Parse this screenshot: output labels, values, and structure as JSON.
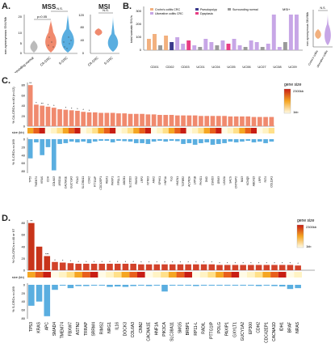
{
  "panels": {
    "A": {
      "label": "A.",
      "mss_title": "MSS",
      "msi_title": "MSI",
      "ylabel": "non-synonymous SNV/Mb",
      "pval": "p=0.05",
      "ns": "N.S.",
      "mss_groups": [
        "Surrounding normal",
        "CA-CRC",
        "S-CRC"
      ],
      "msi_groups": [
        "CA-CRC",
        "S-CRC"
      ],
      "mss_yticks": [
        "0",
        "5",
        "10",
        "20"
      ],
      "msi_yticks": [
        "0",
        "40",
        "80",
        "120"
      ]
    },
    "B": {
      "label": "B.",
      "ylabel": "total somatic SNVs",
      "msi_tag": "MSI+",
      "legend": [
        "Crohn's colitis CRC",
        "Ulcerative colitis CRC",
        "Pseudopolyp",
        "Dysplasia",
        "Surrounding normal"
      ],
      "patients": [
        "CD01",
        "CD02",
        "CD03",
        "UC01",
        "UC04",
        "UC05",
        "UC06",
        "UC07",
        "UC08",
        "UC09"
      ],
      "yticks": [
        "0",
        "100",
        "200",
        "300"
      ],
      "inset_ylabel": "non-synonymous SNV/Mb",
      "inset_ns": "N.S.",
      "inset_groups": [
        "Crohn's colitis",
        "ulcerative colitis"
      ]
    },
    "C": {
      "label": "C.",
      "top_ylabel": "% CA-CRCs n=40 (n=12)",
      "size_label": "size (kb)",
      "bottom_ylabel": "% S-CRCs n=169",
      "legend_title": "gene size",
      "legend_hi": "2300kb",
      "legend_lo": "1kb",
      "genes": [
        "TP53",
        "TMEM74",
        "KRAS",
        "CDH",
        "COL6A3",
        "ARID1A",
        "CACNA1E",
        "GUCY1A3",
        "POLG",
        "SLC38A11",
        "CDH2",
        "PTTG1IP",
        "CDC42EP1",
        "REM1",
        "PAXIP1",
        "RP11-1",
        "ABCB1",
        "SLC35D3",
        "RIMS2",
        "LRP2",
        "NTRK3",
        "ANK2",
        "SPHK1",
        "HNF1A",
        "FLG",
        "HMCN1",
        "TGFBR2",
        "ACVR2A",
        "LRP1B",
        "PKHD1",
        "DMD",
        "CSMD3",
        "GRM3",
        "USH2A",
        "SACS",
        "CNTNAP2",
        "BAI3",
        "KCNQ5",
        "ABCA13",
        "LRP5",
        "FAT4",
        "COL11A1"
      ],
      "pct_top": [
        80,
        42,
        40,
        38,
        36,
        33,
        32,
        31,
        30,
        28,
        27,
        27,
        26,
        26,
        26,
        25,
        25,
        24,
        24,
        24,
        23,
        23,
        22,
        22,
        22,
        21,
        21,
        21,
        21,
        20,
        20,
        20,
        20,
        20,
        19,
        19,
        19,
        19,
        18,
        18,
        18,
        18
      ],
      "pct_bottom": [
        48,
        8,
        40,
        20,
        78,
        12,
        10,
        6,
        8,
        6,
        10,
        6,
        4,
        4,
        8,
        4,
        5,
        6,
        10,
        10,
        12,
        6,
        4,
        6,
        4,
        5,
        12,
        10,
        14,
        10,
        8,
        14,
        12,
        10,
        6,
        8,
        6,
        4,
        8,
        6,
        10,
        6
      ],
      "stars": [
        "**",
        "*",
        "**",
        "*",
        "*",
        "",
        "*",
        "*",
        "*",
        "*",
        "*",
        "",
        "",
        "",
        "",
        "",
        "",
        "",
        "",
        "",
        "",
        "",
        "",
        "",
        "",
        "",
        "",
        "",
        "",
        "",
        "",
        "",
        "",
        "",
        "",
        "",
        "",
        "",
        "",
        "",
        "",
        ""
      ],
      "yticks_top": [
        "0",
        "20",
        "40",
        "60",
        "80"
      ],
      "yticks_bottom": [
        "0",
        "20",
        "40",
        "60",
        "80"
      ]
    },
    "D": {
      "label": "D.",
      "top_ylabel": "% CA-CRCs n=40 or 97",
      "size_label": "size (kb)",
      "bottom_ylabel": "% S-CRCs n=169",
      "legend_title": "gene size",
      "legend_hi": "2300kb",
      "legend_lo": "1kb",
      "genes": [
        "TP53",
        "KRAS",
        "APC",
        "SMAD4",
        "TMEM74",
        "FBXW7",
        "ASTN2",
        "TRRAP",
        "SRRM4",
        "RIMS2",
        "NRG1",
        "IL16",
        "DOCK3",
        "COL6A3",
        "CNN2",
        "CACNA1E",
        "HNF1A",
        "PIK3CA",
        "SLC38A11",
        "SMG5",
        "BRBP1",
        "RP11-L",
        "RADIL",
        "PTTG1IP",
        "POLG",
        "PAXIP1",
        "GXYLT1",
        "GUCY1A2",
        "EP300",
        "CDH2",
        "CDC42EP1",
        "CACNA1D",
        "IDH1",
        "BRAF",
        "NRAS"
      ],
      "pct_top": [
        80,
        40,
        24,
        14,
        13,
        12,
        11,
        11,
        11,
        11,
        11,
        11,
        11,
        11,
        10,
        10,
        10,
        10,
        10,
        10,
        10,
        10,
        10,
        10,
        9,
        9,
        9,
        9,
        9,
        9,
        9,
        9,
        9,
        9,
        8
      ],
      "pct_bottom": [
        50,
        40,
        75,
        12,
        2,
        8,
        3,
        3,
        2,
        2,
        5,
        4,
        5,
        3,
        2,
        3,
        2,
        16,
        2,
        2,
        2,
        3,
        2,
        2,
        2,
        2,
        2,
        2,
        2,
        3,
        2,
        3,
        4,
        10,
        8
      ],
      "stars": [
        "**",
        "",
        "***",
        "*",
        "*",
        "*",
        "*",
        "*",
        "*",
        "*",
        "*",
        "*",
        "*",
        "*",
        "*",
        "*",
        "*",
        "*",
        "*",
        "*",
        "*",
        "*",
        "*",
        "*",
        "*",
        "*",
        "*",
        "*",
        "*",
        "*",
        "*",
        "*",
        "*",
        "*",
        "*"
      ],
      "yticks_top": [
        "0",
        "20",
        "40",
        "60",
        "80"
      ],
      "yticks_bottom": [
        "0",
        "20",
        "40",
        "60",
        "80"
      ]
    }
  },
  "colors": {
    "ca": "#f08a6e",
    "ca_dark": "#c8341a",
    "s": "#5aaee0",
    "uc": "#c7a6e6",
    "cd": "#f2b07e",
    "normal": "#9a9a9a",
    "dysplasia": "#e83d84",
    "pseudo": "#3b3a8c"
  }
}
